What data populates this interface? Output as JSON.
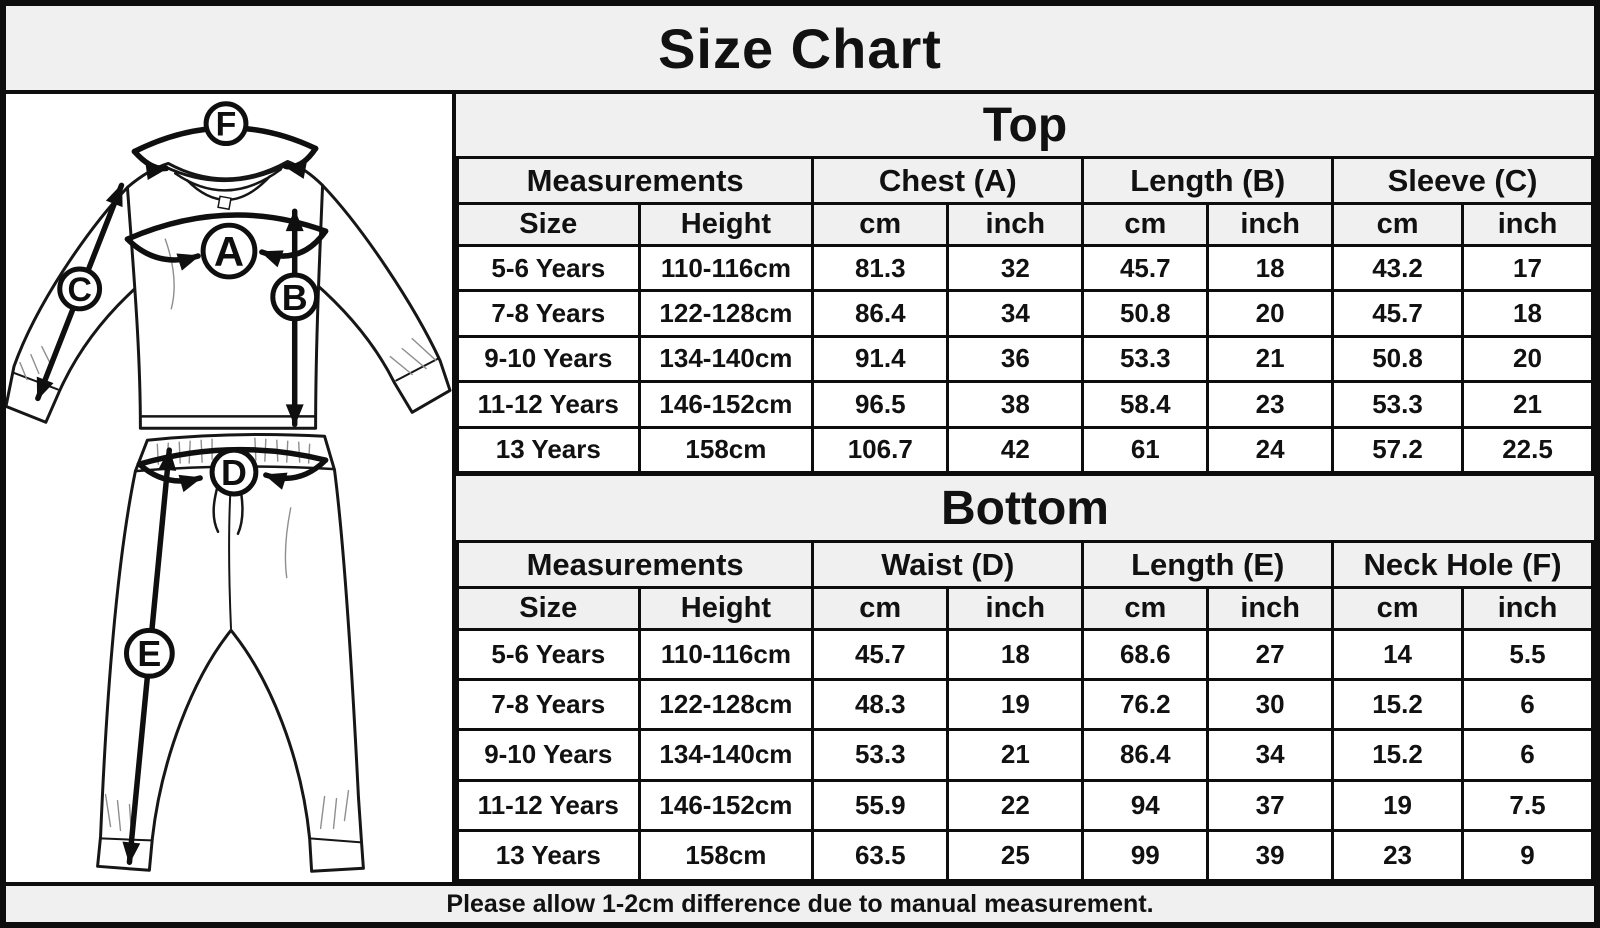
{
  "title": "Size Chart",
  "footer": "Please allow 1-2cm difference due to manual measurement.",
  "colors": {
    "header_fill": "#f0f0f0",
    "table_fill": "#ffffff",
    "border": "#0d0d0d",
    "text": "#111111"
  },
  "diagram": {
    "labels": {
      "a": "A",
      "b": "B",
      "c": "C",
      "d": "D",
      "e": "E",
      "f": "F"
    }
  },
  "chart_data": [
    {
      "type": "table",
      "title": "Top",
      "groups": [
        "Measurements",
        "Chest (A)",
        "Length (B)",
        "Sleeve (C)"
      ],
      "columns": [
        "Size",
        "Height",
        "cm",
        "inch",
        "cm",
        "inch",
        "cm",
        "inch"
      ],
      "rows": [
        [
          "5-6 Years",
          "110-116cm",
          "81.3",
          "32",
          "45.7",
          "18",
          "43.2",
          "17"
        ],
        [
          "7-8 Years",
          "122-128cm",
          "86.4",
          "34",
          "50.8",
          "20",
          "45.7",
          "18"
        ],
        [
          "9-10 Years",
          "134-140cm",
          "91.4",
          "36",
          "53.3",
          "21",
          "50.8",
          "20"
        ],
        [
          "11-12 Years",
          "146-152cm",
          "96.5",
          "38",
          "58.4",
          "23",
          "53.3",
          "21"
        ],
        [
          "13 Years",
          "158cm",
          "106.7",
          "42",
          "61",
          "24",
          "57.2",
          "22.5"
        ]
      ]
    },
    {
      "type": "table",
      "title": "Bottom",
      "groups": [
        "Measurements",
        "Waist (D)",
        "Length (E)",
        "Neck Hole (F)"
      ],
      "columns": [
        "Size",
        "Height",
        "cm",
        "inch",
        "cm",
        "inch",
        "cm",
        "inch"
      ],
      "rows": [
        [
          "5-6 Years",
          "110-116cm",
          "45.7",
          "18",
          "68.6",
          "27",
          "14",
          "5.5"
        ],
        [
          "7-8 Years",
          "122-128cm",
          "48.3",
          "19",
          "76.2",
          "30",
          "15.2",
          "6"
        ],
        [
          "9-10 Years",
          "134-140cm",
          "53.3",
          "21",
          "86.4",
          "34",
          "15.2",
          "6"
        ],
        [
          "11-12 Years",
          "146-152cm",
          "55.9",
          "22",
          "94",
          "37",
          "19",
          "7.5"
        ],
        [
          "13 Years",
          "158cm",
          "63.5",
          "25",
          "99",
          "39",
          "23",
          "9"
        ]
      ]
    }
  ]
}
